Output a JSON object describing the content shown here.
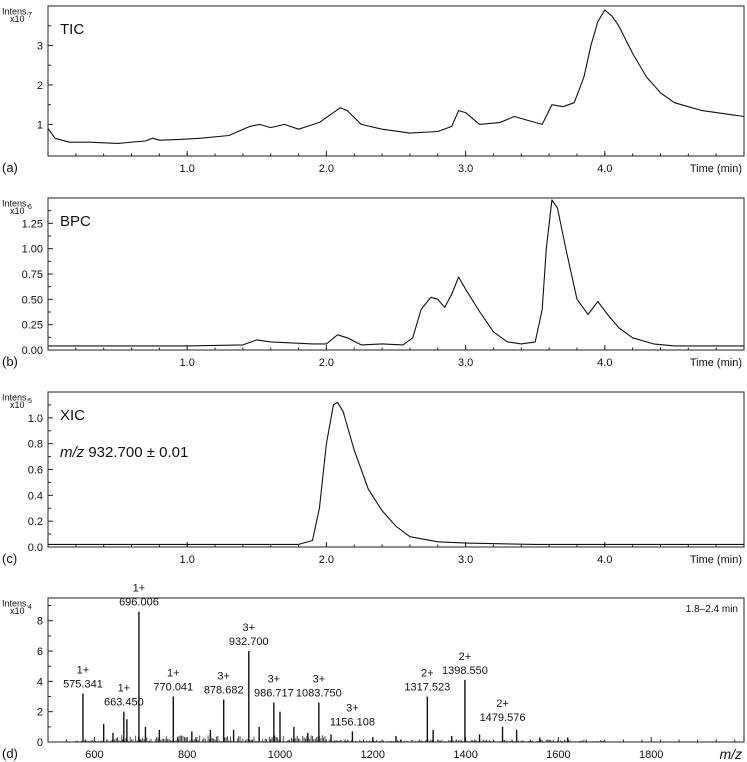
{
  "chart_data": [
    {
      "type": "line",
      "panel": "(a)",
      "title": "TIC",
      "ylabel": "Intens.",
      "y_exponent": "x10",
      "y_exponent_power": "7",
      "xlabel": "Time (min)",
      "xlim": [
        0,
        5.0
      ],
      "ylim": [
        0.2,
        4.0
      ],
      "xticks": [
        1.0,
        2.0,
        3.0,
        4.0
      ],
      "xtick_labels": [
        "1.0",
        "2.0",
        "3.0",
        "4.0"
      ],
      "yticks": [
        1,
        2,
        3
      ],
      "ytick_labels": [
        "1",
        "2",
        "3"
      ],
      "x": [
        0.0,
        0.05,
        0.15,
        0.3,
        0.5,
        0.7,
        0.75,
        0.8,
        0.95,
        1.1,
        1.3,
        1.45,
        1.52,
        1.6,
        1.7,
        1.8,
        1.95,
        2.05,
        2.1,
        2.15,
        2.25,
        2.4,
        2.6,
        2.8,
        2.9,
        2.95,
        3.0,
        3.1,
        3.25,
        3.35,
        3.45,
        3.55,
        3.62,
        3.7,
        3.78,
        3.85,
        3.9,
        3.95,
        4.0,
        4.05,
        4.1,
        4.2,
        4.3,
        4.4,
        4.5,
        4.6,
        4.7,
        4.8,
        4.9,
        5.0
      ],
      "values": [
        0.9,
        0.65,
        0.55,
        0.55,
        0.52,
        0.58,
        0.65,
        0.6,
        0.62,
        0.65,
        0.72,
        0.95,
        1.0,
        0.92,
        1.0,
        0.88,
        1.05,
        1.3,
        1.42,
        1.35,
        1.0,
        0.88,
        0.78,
        0.82,
        0.95,
        1.35,
        1.3,
        1.0,
        1.05,
        1.2,
        1.1,
        1.0,
        1.5,
        1.45,
        1.55,
        2.2,
        3.0,
        3.6,
        3.9,
        3.75,
        3.5,
        2.8,
        2.2,
        1.8,
        1.55,
        1.45,
        1.35,
        1.3,
        1.25,
        1.2
      ]
    },
    {
      "type": "line",
      "panel": "(b)",
      "title": "BPC",
      "ylabel": "Intens.",
      "y_exponent": "x10",
      "y_exponent_power": "6",
      "xlabel": "Time (min)",
      "xlim": [
        0,
        5.0
      ],
      "ylim": [
        0,
        1.5
      ],
      "xticks": [
        1.0,
        2.0,
        3.0,
        4.0
      ],
      "xtick_labels": [
        "1.0",
        "2.0",
        "3.0",
        "4.0"
      ],
      "yticks": [
        0,
        0.25,
        0.5,
        0.75,
        1.0,
        1.25
      ],
      "ytick_labels": [
        "0.00",
        "0.25",
        "0.50",
        "0.75",
        "1.00",
        "1.25"
      ],
      "x": [
        0.0,
        0.5,
        1.0,
        1.4,
        1.5,
        1.6,
        1.9,
        2.0,
        2.08,
        2.15,
        2.25,
        2.4,
        2.55,
        2.62,
        2.68,
        2.75,
        2.8,
        2.85,
        2.9,
        2.95,
        3.0,
        3.1,
        3.2,
        3.3,
        3.4,
        3.5,
        3.55,
        3.58,
        3.62,
        3.66,
        3.72,
        3.8,
        3.88,
        3.95,
        4.02,
        4.1,
        4.2,
        4.35,
        4.5,
        4.7,
        5.0
      ],
      "values": [
        0.04,
        0.04,
        0.04,
        0.05,
        0.1,
        0.08,
        0.06,
        0.06,
        0.15,
        0.12,
        0.05,
        0.06,
        0.05,
        0.12,
        0.4,
        0.52,
        0.5,
        0.42,
        0.55,
        0.72,
        0.6,
        0.38,
        0.18,
        0.08,
        0.06,
        0.08,
        0.4,
        1.0,
        1.48,
        1.4,
        1.0,
        0.5,
        0.35,
        0.48,
        0.35,
        0.22,
        0.12,
        0.06,
        0.04,
        0.04,
        0.04
      ]
    },
    {
      "type": "line",
      "panel": "(c)",
      "title": "XIC",
      "annotation": "m/z 932.700 ± 0.01",
      "ylabel": "Intens.",
      "y_exponent": "x10",
      "y_exponent_power": "5",
      "xlabel": "Time (min)",
      "xlim": [
        0,
        5.0
      ],
      "ylim": [
        0,
        1.2
      ],
      "xticks": [
        1.0,
        2.0,
        3.0,
        4.0
      ],
      "xtick_labels": [
        "1.0",
        "2.0",
        "3.0",
        "4.0"
      ],
      "yticks": [
        0,
        0.2,
        0.4,
        0.6,
        0.8,
        1.0
      ],
      "ytick_labels": [
        "0.0",
        "0.2",
        "0.4",
        "0.6",
        "0.8",
        "1.0"
      ],
      "x": [
        0.0,
        1.0,
        1.8,
        1.9,
        1.95,
        2.0,
        2.05,
        2.08,
        2.12,
        2.2,
        2.3,
        2.4,
        2.5,
        2.6,
        2.8,
        3.0,
        3.5,
        4.0,
        4.5,
        5.0
      ],
      "values": [
        0.02,
        0.02,
        0.02,
        0.05,
        0.3,
        0.8,
        1.1,
        1.12,
        1.05,
        0.75,
        0.45,
        0.28,
        0.16,
        0.08,
        0.04,
        0.03,
        0.02,
        0.02,
        0.02,
        0.02
      ]
    },
    {
      "type": "bar",
      "panel": "(d)",
      "subtype": "mass-spectrum",
      "range_label": "1.8–2.4 min",
      "ylabel": "Intens.",
      "y_exponent": "x10",
      "y_exponent_power": "4",
      "xlabel": "m/z",
      "xlim": [
        500,
        2000
      ],
      "ylim": [
        0,
        9.5
      ],
      "xticks": [
        600,
        800,
        1000,
        1200,
        1400,
        1600,
        1800
      ],
      "xtick_labels": [
        "600",
        "800",
        "1000",
        "1200",
        "1400",
        "1600",
        "1800"
      ],
      "yticks": [
        0,
        2,
        4,
        6,
        8
      ],
      "ytick_labels": [
        "0",
        "2",
        "4",
        "6",
        "8"
      ],
      "x": [
        575.341,
        620,
        640,
        663.45,
        670,
        696.006,
        710,
        740,
        770.041,
        810,
        850,
        878.682,
        900,
        932.7,
        955,
        986.717,
        1000,
        1030,
        1060,
        1083.75,
        1110,
        1156.108,
        1200,
        1250,
        1317.523,
        1330,
        1370,
        1398.55,
        1430,
        1479.576,
        1510,
        1560,
        1620
      ],
      "values": [
        3.2,
        1.2,
        0.6,
        2.0,
        1.5,
        8.6,
        1.0,
        0.8,
        3.0,
        0.7,
        0.8,
        2.8,
        0.8,
        6.0,
        1.0,
        2.6,
        2.0,
        1.0,
        0.6,
        2.6,
        0.5,
        0.7,
        0.3,
        0.4,
        3.0,
        0.8,
        0.4,
        4.1,
        0.5,
        1.0,
        0.8,
        0.3,
        0.3
      ],
      "peak_labels": [
        {
          "mz": 575.341,
          "charge": "1+",
          "label": "575.341"
        },
        {
          "mz": 663.45,
          "charge": "1+",
          "label": "663.450"
        },
        {
          "mz": 696.006,
          "charge": "1+",
          "label": "696.006"
        },
        {
          "mz": 770.041,
          "charge": "1+",
          "label": "770.041"
        },
        {
          "mz": 878.682,
          "charge": "3+",
          "label": "878.682"
        },
        {
          "mz": 932.7,
          "charge": "3+",
          "label": "932.700"
        },
        {
          "mz": 986.717,
          "charge": "3+",
          "label": "986.717"
        },
        {
          "mz": 1083.75,
          "charge": "3+",
          "label": "1083.750"
        },
        {
          "mz": 1156.108,
          "charge": "3+",
          "label": "1156.108"
        },
        {
          "mz": 1317.523,
          "charge": "2+",
          "label": "1317.523"
        },
        {
          "mz": 1398.55,
          "charge": "2+",
          "label": "1398.550"
        },
        {
          "mz": 1479.576,
          "charge": "2+",
          "label": "1479.576"
        }
      ]
    }
  ]
}
